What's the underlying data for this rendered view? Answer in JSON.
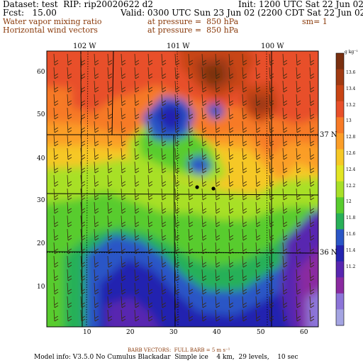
{
  "header": {
    "dataset": "Dataset: test  RIP: rip20020622 d2",
    "init": "Init: 1200 UTC Sat 22 Jun 02",
    "fcst": "Fcst:   15.00",
    "valid": "Valid: 0300 UTC Sun 23 Jun 02 (2200 CDT Sat 22 Jun 02)",
    "field1_name": "Water vapor mixing ratio",
    "field1_level": "at pressure =  850 hPa",
    "field1_sm": "sm= 1",
    "field2_name": "Horizontal wind vectors",
    "field2_level": "at pressure =  850 hPa"
  },
  "map": {
    "lon_labels": [
      "102 W",
      "101 W",
      "100 W"
    ],
    "lat_labels": [
      "37 N",
      "36 N"
    ],
    "x_ticks": [
      "10",
      "20",
      "30",
      "40",
      "50",
      "60"
    ],
    "y_ticks": [
      "10",
      "20",
      "30",
      "40",
      "50",
      "60"
    ]
  },
  "colorbar": {
    "unit": "g kg⁻¹",
    "labels": [
      "13.6",
      "13.4",
      "13.2",
      "13",
      "12.8",
      "12.6",
      "12.4",
      "12.2",
      "12",
      "11.8",
      "11.6",
      "11.4",
      "11.2"
    ],
    "colors": [
      "#7a3010",
      "#a03a12",
      "#c84414",
      "#e8502a",
      "#f77a26",
      "#fb9e28",
      "#f6c826",
      "#e2e524",
      "#a8e028",
      "#58cc2e",
      "#28b058",
      "#2a56c6",
      "#2424b0",
      "#5826b0",
      "#8a2aa0",
      "#8c74d8",
      "#a4a4e2"
    ]
  },
  "footer": {
    "barb": "BARB VECTORS:  FULL BARB = 5 m s⁻¹",
    "model_info": "Model info: V3.5.0 No Cumulus Blackadar  Simple ice    4 km,  29 levels,    10 sec"
  }
}
